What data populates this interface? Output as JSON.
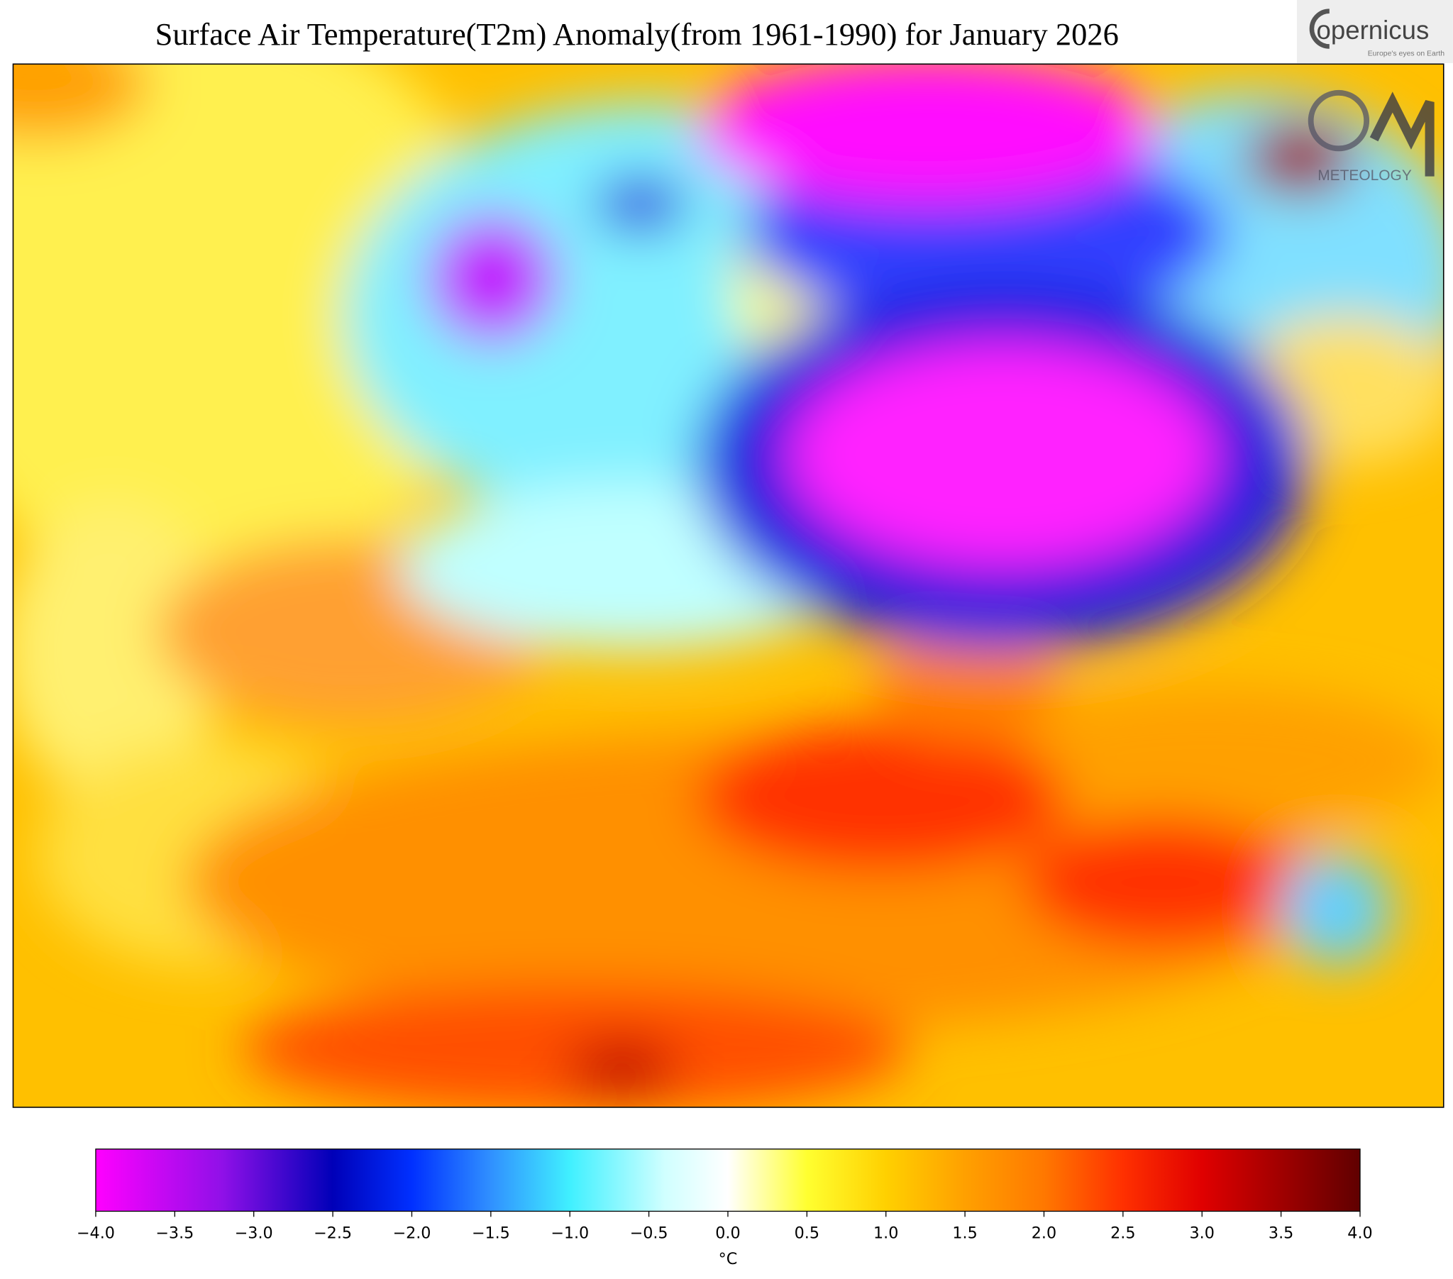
{
  "header": {
    "title": "Surface Air Temperature(T2m) Anomaly(from 1961-1990) for January 2026"
  },
  "logos": {
    "copernicus": "opernicus",
    "copernicus_tagline": "Europe's eyes on Earth",
    "meteology": "METEOLOGY"
  },
  "colorbar": {
    "min": -4,
    "max": 4,
    "unit": "°C",
    "ticks": [
      {
        "value": -4,
        "label": "−4.0"
      },
      {
        "value": -3.5,
        "label": "−3.5"
      },
      {
        "value": -3,
        "label": "−3.0"
      },
      {
        "value": -2.5,
        "label": "−2.5"
      },
      {
        "value": -2,
        "label": "−2.0"
      },
      {
        "value": -1.5,
        "label": "−1.5"
      },
      {
        "value": -1,
        "label": "−1.0"
      },
      {
        "value": -0.5,
        "label": "−0.5"
      },
      {
        "value": 0,
        "label": "0.0"
      },
      {
        "value": 0.5,
        "label": "0.5"
      },
      {
        "value": 1,
        "label": "1.0"
      },
      {
        "value": 1.5,
        "label": "1.5"
      },
      {
        "value": 2,
        "label": "2.0"
      },
      {
        "value": 2.5,
        "label": "2.5"
      },
      {
        "value": 3,
        "label": "3.0"
      },
      {
        "value": 3.5,
        "label": "3.5"
      },
      {
        "value": 4,
        "label": "4.0"
      }
    ],
    "stops": [
      {
        "value": -4,
        "color": "#ff00ff"
      },
      {
        "value": -3.2,
        "color": "#9010e8"
      },
      {
        "value": -2.5,
        "color": "#0000b8"
      },
      {
        "value": -2,
        "color": "#0030ff"
      },
      {
        "value": -1.5,
        "color": "#3090ff"
      },
      {
        "value": -1,
        "color": "#40f0ff"
      },
      {
        "value": -0.4,
        "color": "#d0ffff"
      },
      {
        "value": 0,
        "color": "#ffffff"
      },
      {
        "value": 0.5,
        "color": "#ffff30"
      },
      {
        "value": 1,
        "color": "#ffd000"
      },
      {
        "value": 1.5,
        "color": "#ffa000"
      },
      {
        "value": 2,
        "color": "#ff7800"
      },
      {
        "value": 2.5,
        "color": "#ff3000"
      },
      {
        "value": 3,
        "color": "#e00000"
      },
      {
        "value": 4,
        "color": "#600000"
      }
    ]
  }
}
